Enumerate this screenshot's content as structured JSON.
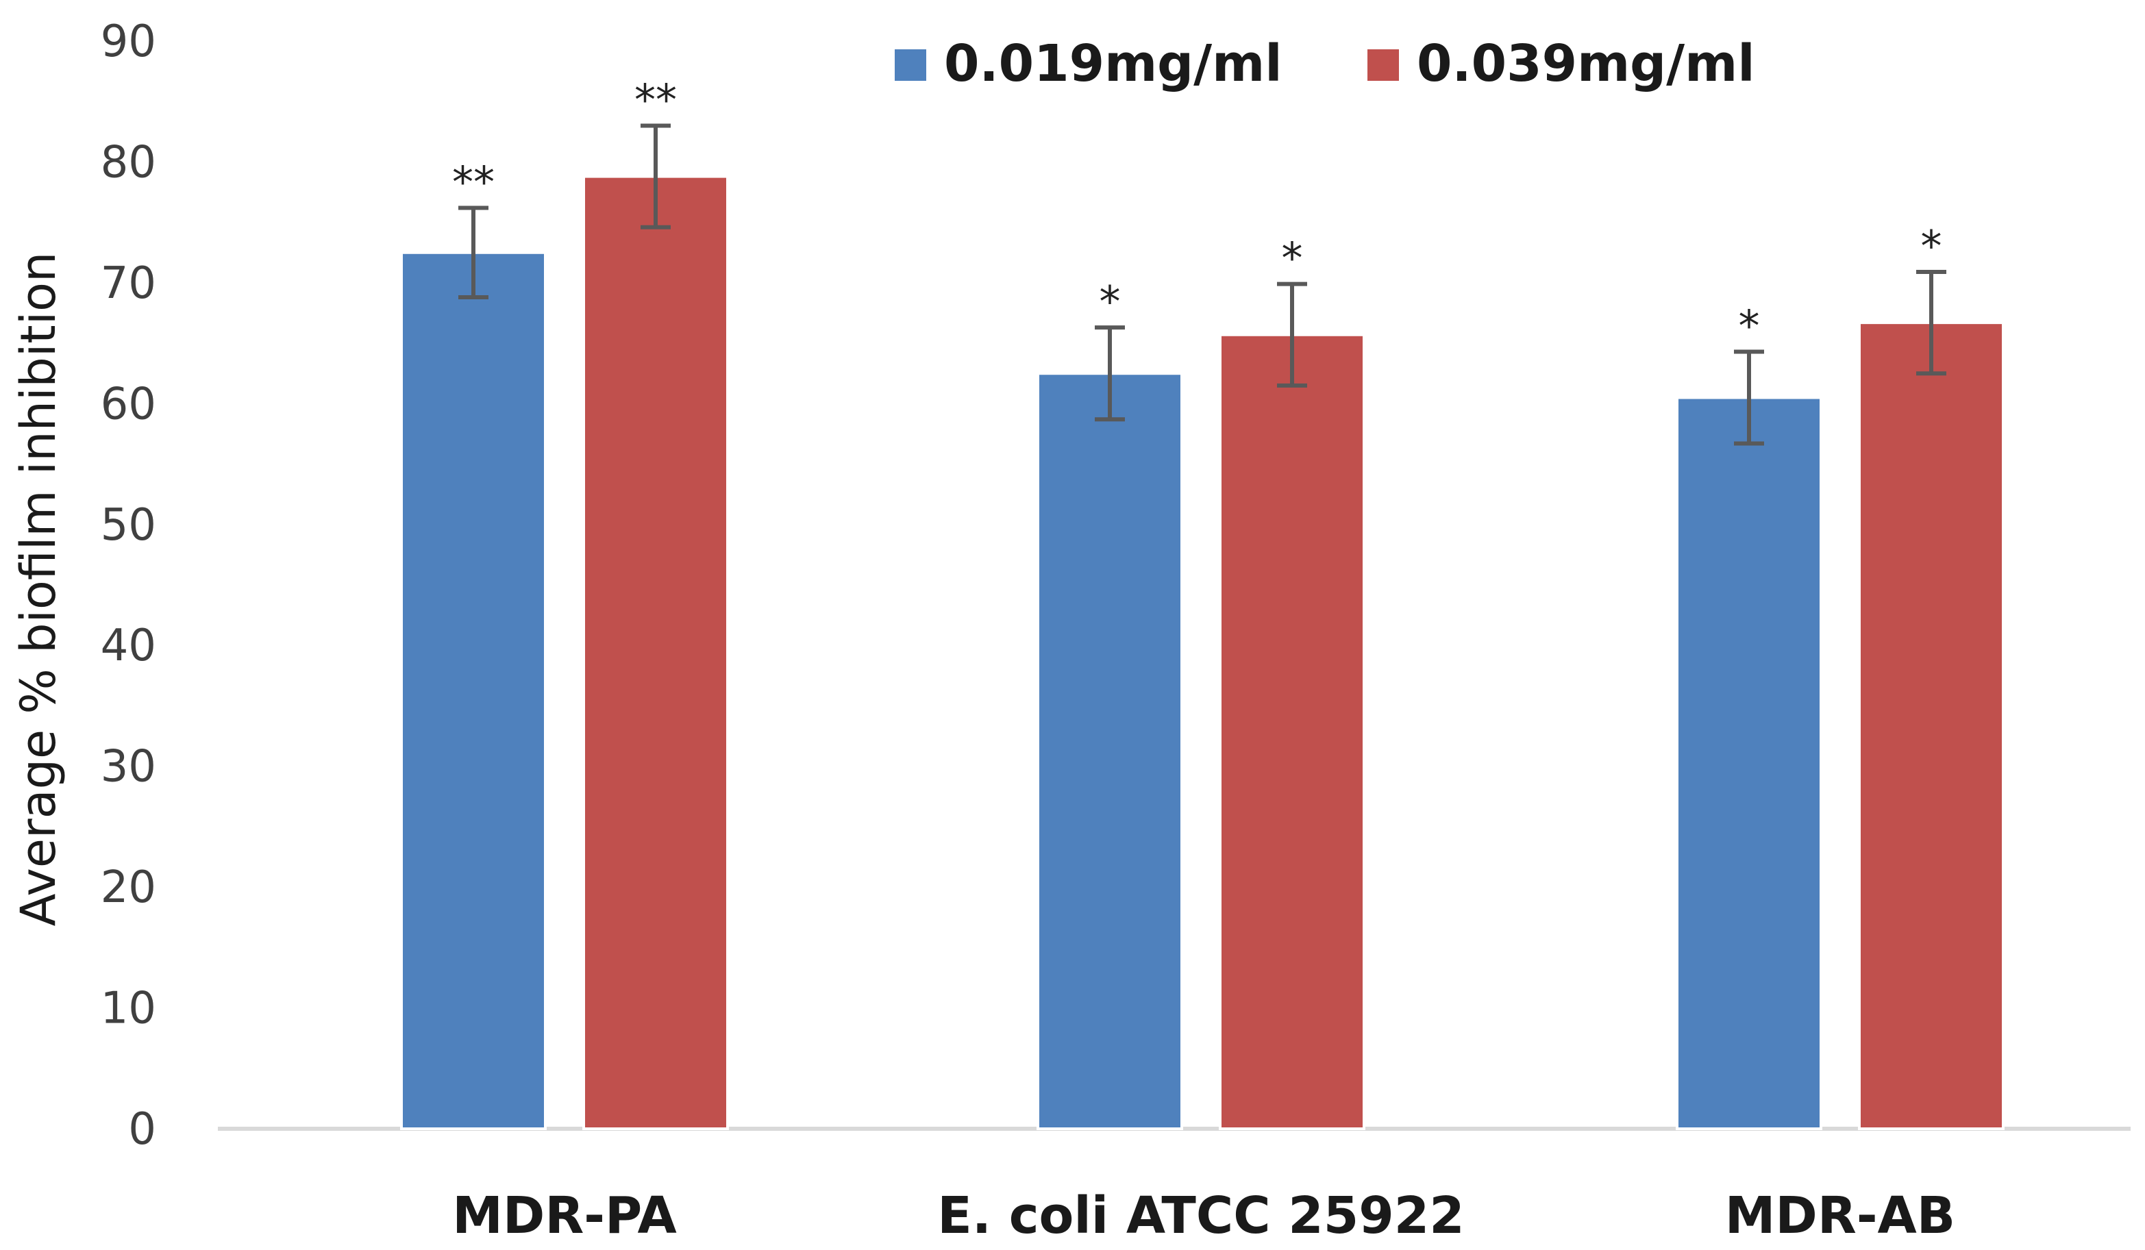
{
  "chart_data": {
    "type": "bar",
    "title": "",
    "xlabel": "",
    "ylabel": "Average % biofilm inhibition",
    "ylim": [
      0,
      90
    ],
    "yticks": [
      0,
      10,
      20,
      30,
      40,
      50,
      60,
      70,
      80,
      90
    ],
    "grid": false,
    "legend_position": "top",
    "categories": [
      "MDR-PA",
      "E. coli ATCC 25922",
      "MDR-AB"
    ],
    "series": [
      {
        "name": "0.019mg/ml",
        "color": "#4F81BD",
        "values": [
          72.5,
          62.5,
          60.5
        ],
        "error": [
          3.7,
          3.8,
          3.8
        ],
        "significance": [
          "**",
          "*",
          "*"
        ]
      },
      {
        "name": "0.039mg/ml",
        "color": "#C0504D",
        "values": [
          78.8,
          65.7,
          66.7
        ],
        "error": [
          4.2,
          4.2,
          4.2
        ],
        "significance": [
          "**",
          "*",
          "*"
        ]
      }
    ],
    "error_bar_color": "#595959",
    "axis_color": "#D9D9D9"
  }
}
